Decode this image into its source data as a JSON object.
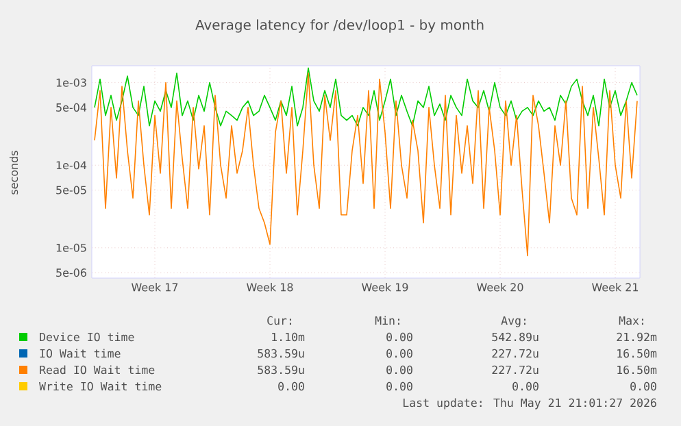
{
  "chart_data": {
    "type": "line",
    "title": "Average latency for /dev/loop1 - by month",
    "ylabel": "seconds",
    "log": "y",
    "grid": true,
    "legend": "bottom",
    "marker": "none",
    "line_style": "solid",
    "ylim": [
      4.3e-06,
      0.0016
    ],
    "categories": [
      null,
      null,
      null,
      null,
      null,
      null,
      null,
      null,
      null,
      null,
      null,
      "Week 17",
      null,
      null,
      null,
      null,
      null,
      null,
      null,
      null,
      null,
      null,
      null,
      null,
      null,
      null,
      null,
      null,
      null,
      null,
      null,
      null,
      "Week 18",
      null,
      null,
      null,
      null,
      null,
      null,
      null,
      null,
      null,
      null,
      null,
      null,
      null,
      null,
      null,
      null,
      null,
      null,
      null,
      null,
      "Week 19",
      null,
      null,
      null,
      null,
      null,
      null,
      null,
      null,
      null,
      null,
      null,
      null,
      null,
      null,
      null,
      null,
      null,
      null,
      null,
      null,
      "Week 20",
      null,
      null,
      null,
      null,
      null,
      null,
      null,
      null,
      null,
      null,
      null,
      null,
      null,
      null,
      null,
      null,
      null,
      null,
      null,
      null,
      "Week 21",
      null,
      null,
      null,
      null
    ],
    "yticks": [
      {
        "value": 5e-06,
        "label": "5e-06"
      },
      {
        "value": 1e-05,
        "label": "1e-05"
      },
      {
        "value": 5e-05,
        "label": "5e-05"
      },
      {
        "value": 0.0001,
        "label": "1e-04"
      },
      {
        "value": 0.0005,
        "label": "5e-04"
      },
      {
        "value": 0.001,
        "label": "1e-03"
      }
    ],
    "series": [
      {
        "name": "Device IO time",
        "color": "#00cc00",
        "values": [
          0.0005,
          0.0011,
          0.0004,
          0.0007,
          0.00035,
          0.0006,
          0.0012,
          0.0005,
          0.0004,
          0.0009,
          0.0003,
          0.0006,
          0.00045,
          0.0008,
          0.0005,
          0.0013,
          0.0004,
          0.0006,
          0.00035,
          0.0007,
          0.00045,
          0.001,
          0.0005,
          0.0003,
          0.00045,
          0.0004,
          0.00035,
          0.0005,
          0.0006,
          0.0004,
          0.00045,
          0.0007,
          0.0005,
          0.00035,
          0.0006,
          0.0004,
          0.0009,
          0.0003,
          0.0005,
          0.0015,
          0.0006,
          0.00045,
          0.0008,
          0.0005,
          0.0011,
          0.0004,
          0.00035,
          0.0004,
          0.0003,
          0.0005,
          0.0004,
          0.0008,
          0.00035,
          0.0006,
          0.0011,
          0.0004,
          0.0007,
          0.00045,
          0.0003,
          0.0006,
          0.0005,
          0.0009,
          0.0004,
          0.00055,
          0.00035,
          0.0007,
          0.0005,
          0.0004,
          0.0011,
          0.0006,
          0.0005,
          0.0008,
          0.00045,
          0.001,
          0.0005,
          0.0004,
          0.0006,
          0.00035,
          0.00045,
          0.0005,
          0.0004,
          0.0006,
          0.00045,
          0.0005,
          0.00035,
          0.0007,
          0.00055,
          0.0009,
          0.0011,
          0.0006,
          0.0004,
          0.0007,
          0.0003,
          0.0011,
          0.0005,
          0.0008,
          0.0004,
          0.0006,
          0.001,
          0.0007
        ]
      },
      {
        "name": "IO Wait time",
        "color": "#0066b3",
        "values": [
          null,
          null,
          null,
          null,
          null,
          null,
          null,
          null,
          null,
          null,
          null,
          null,
          null,
          null,
          null,
          null,
          null,
          null,
          null,
          null,
          null,
          null,
          null,
          null,
          null,
          null,
          null,
          null,
          null,
          null,
          null,
          null,
          null,
          null,
          null,
          null,
          null,
          null,
          null,
          null,
          null,
          null,
          null,
          null,
          null,
          null,
          null,
          null,
          null,
          null,
          null,
          null,
          null,
          null,
          null,
          null,
          null,
          null,
          null,
          null,
          null,
          null,
          null,
          null,
          null,
          null,
          null,
          null,
          null,
          null,
          null,
          null,
          null,
          null,
          null,
          null,
          null,
          null,
          null,
          null,
          null,
          null,
          null,
          null,
          null,
          null,
          null,
          null,
          null,
          null,
          null,
          null,
          null,
          null,
          null,
          null,
          null,
          null,
          null,
          null
        ]
      },
      {
        "name": "Read IO Wait time",
        "color": "#ff8000",
        "values": [
          0.0002,
          0.0008,
          3e-05,
          0.0005,
          7e-05,
          0.0009,
          0.00015,
          4e-05,
          0.0006,
          0.0001,
          2.5e-05,
          0.0004,
          8e-05,
          0.001,
          3e-05,
          0.0006,
          0.00012,
          3e-05,
          0.0005,
          9e-05,
          0.0003,
          2.5e-05,
          0.0007,
          0.0001,
          4e-05,
          0.0003,
          8e-05,
          0.00015,
          0.0005,
          0.0001,
          3e-05,
          2e-05,
          1.1e-05,
          0.00025,
          0.0006,
          8e-05,
          0.0005,
          2.5e-05,
          0.00015,
          0.0013,
          0.0001,
          3e-05,
          0.0007,
          0.0002,
          0.0008,
          2.5e-05,
          2.5e-05,
          0.00015,
          0.0004,
          6e-05,
          0.0008,
          3e-05,
          0.0011,
          0.00025,
          3e-05,
          0.0006,
          0.0001,
          4e-05,
          0.00035,
          0.00015,
          2e-05,
          0.0005,
          0.0001,
          3e-05,
          0.0007,
          2.5e-05,
          0.0004,
          8e-05,
          0.0003,
          6e-05,
          0.0008,
          3e-05,
          0.0005,
          0.00015,
          2.5e-05,
          0.0006,
          0.0001,
          0.0004,
          5e-05,
          8e-06,
          0.0007,
          0.0003,
          8e-05,
          2e-05,
          0.0003,
          0.0001,
          0.0006,
          4e-05,
          2.5e-05,
          0.0009,
          3e-05,
          0.0005,
          0.00012,
          2.5e-05,
          0.0008,
          0.0001,
          4e-05,
          0.0006,
          7e-05,
          0.0006
        ]
      },
      {
        "name": "Write IO Wait time",
        "color": "#ffcc00",
        "values": [
          null,
          null,
          null,
          null,
          null,
          null,
          null,
          null,
          null,
          null,
          null,
          null,
          null,
          null,
          null,
          null,
          null,
          null,
          null,
          null,
          null,
          null,
          null,
          null,
          null,
          null,
          null,
          null,
          null,
          null,
          null,
          null,
          null,
          null,
          null,
          null,
          null,
          null,
          null,
          null,
          null,
          null,
          null,
          null,
          null,
          null,
          null,
          null,
          null,
          null,
          null,
          null,
          null,
          null,
          null,
          null,
          null,
          null,
          null,
          null,
          null,
          null,
          null,
          null,
          null,
          null,
          null,
          null,
          null,
          null,
          null,
          null,
          null,
          null,
          null,
          null,
          null,
          null,
          null,
          null,
          null,
          null,
          null,
          null,
          null,
          null,
          null,
          null,
          null,
          null,
          null,
          null,
          null,
          null,
          null,
          null,
          null,
          null,
          null,
          null
        ]
      }
    ],
    "annotations": [
      "Cur:",
      "Min:",
      "Avg:",
      "Max:",
      "1.10m",
      "0.00",
      "542.89u",
      "21.92m",
      "583.59u",
      "0.00",
      "227.72u",
      "16.50m",
      "583.59u",
      "0.00",
      "227.72u",
      "16.50m",
      "0.00",
      "0.00",
      "0.00",
      "0.00",
      "Last update: Thu May 21 21:01:27 2026"
    ]
  }
}
